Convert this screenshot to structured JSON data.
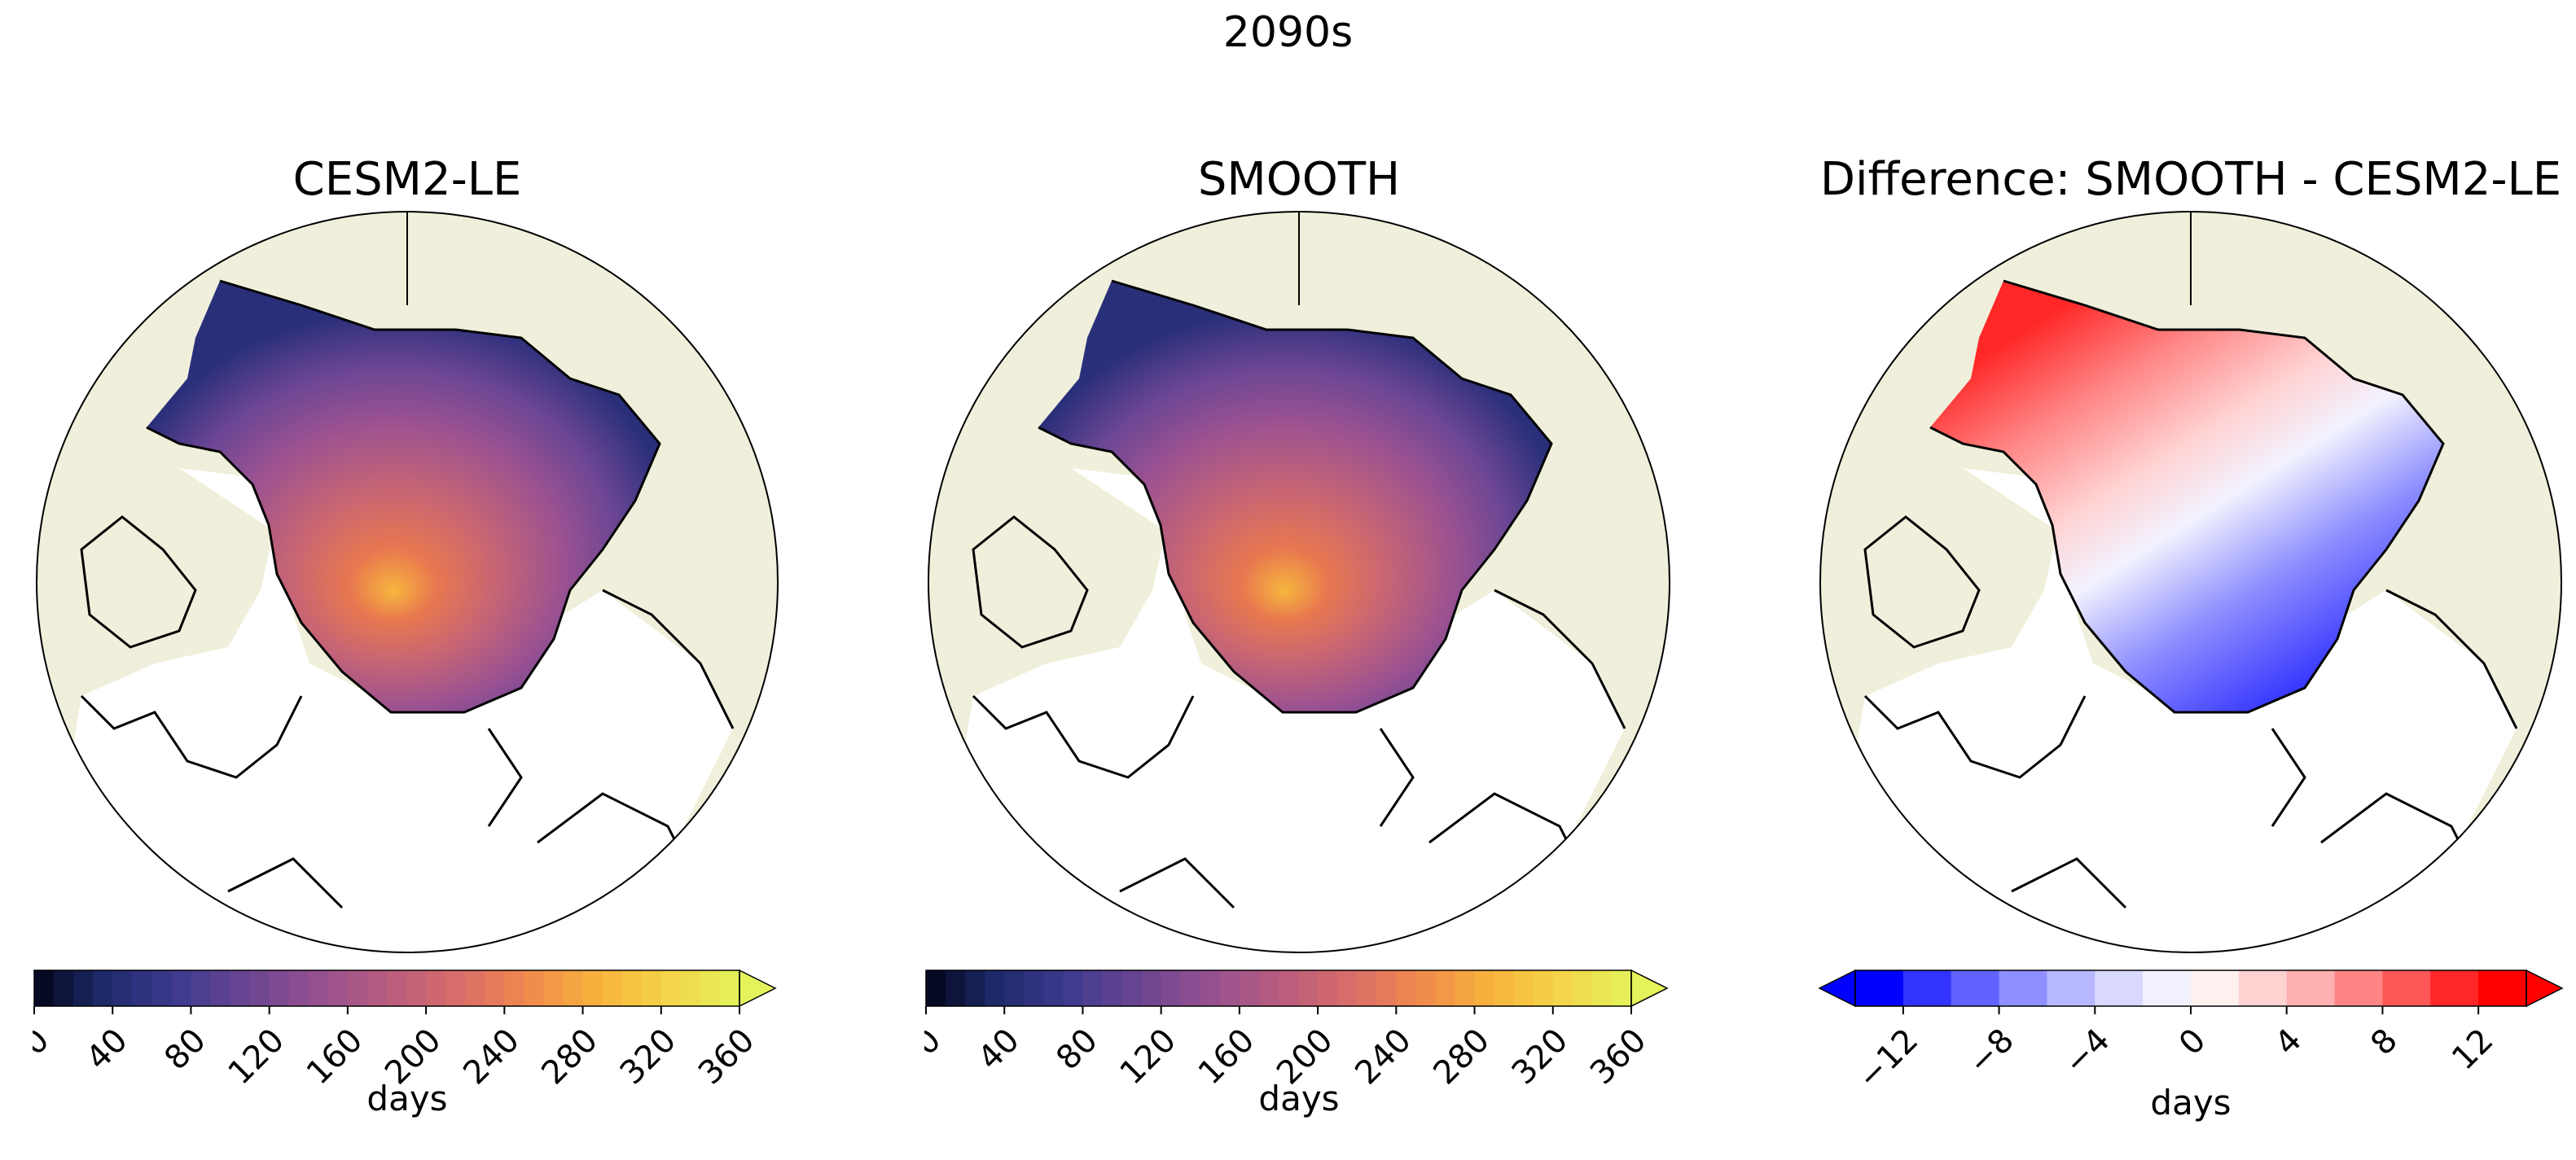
{
  "suptitle": "2090s",
  "panels": [
    {
      "title": "CESM2-LE",
      "colormap": "thermal",
      "colorbar": {
        "ticks": [
          "0",
          "40",
          "80",
          "120",
          "160",
          "200",
          "240",
          "280",
          "320",
          "360"
        ],
        "range": [
          0,
          360
        ],
        "extend": "max",
        "label": "days"
      }
    },
    {
      "title": "SMOOTH",
      "colormap": "thermal",
      "colorbar": {
        "ticks": [
          "0",
          "40",
          "80",
          "120",
          "160",
          "200",
          "240",
          "280",
          "320",
          "360"
        ],
        "range": [
          0,
          360
        ],
        "extend": "max",
        "label": "days"
      }
    },
    {
      "title": "Difference: SMOOTH - CESM2-LE",
      "colormap": "bwr",
      "colorbar": {
        "ticks": [
          "−12",
          "−8",
          "−4",
          "0",
          "4",
          "8",
          "12"
        ],
        "range": [
          -14,
          14
        ],
        "extend": "both",
        "label": "days"
      }
    }
  ],
  "colors": {
    "land": "#efefdb",
    "ocean": "#ffffff",
    "coastline": "#000000",
    "thermal_stops": [
      "#03051a",
      "#1f2a6b",
      "#3d3a8f",
      "#6a4592",
      "#945090",
      "#b85c7f",
      "#d86c6a",
      "#f0894d",
      "#f8b33b",
      "#f4d44a",
      "#e4f35c"
    ],
    "bwr_stops": [
      "#0000ff",
      "#3333ff",
      "#6262ff",
      "#8f8fff",
      "#b7b7ff",
      "#d9d9ff",
      "#f2f2ff",
      "#fff0f0",
      "#ffd2d2",
      "#ffb0b0",
      "#ff8585",
      "#ff5656",
      "#ff2727",
      "#ff0000"
    ]
  }
}
